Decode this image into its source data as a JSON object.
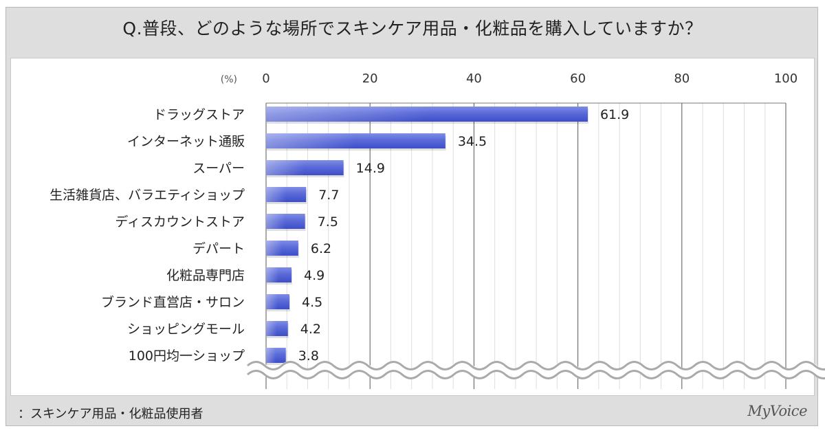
{
  "title": "Q.普段、どのような場所でスキンケア用品・化粧品を購入していますか？",
  "footnote": "：スキンケア用品・化粧品使用者",
  "logo": "MyVoice",
  "colors": {
    "bar": "#5566d8",
    "bar_light": "#aab4f0",
    "grid_major": "#555555",
    "grid_minor": "#dddddd",
    "frame": "#dedede"
  },
  "chart_data": {
    "type": "bar",
    "orientation": "horizontal",
    "title": "Q.普段、どのような場所でスキンケア用品・化粧品を購入していますか？",
    "unit_label": "(%)",
    "xlim": [
      0,
      100
    ],
    "ticks": [
      0,
      20,
      40,
      60,
      80,
      100
    ],
    "grid": true,
    "categories": [
      "ドラッグストア",
      "インターネット通販",
      "スーパー",
      "生活雑貨店、バラエティショップ",
      "ディスカウントストア",
      "デパート",
      "化粧品専門店",
      "ブランド直営店・サロン",
      "ショッピングモール",
      "100円均一ショップ"
    ],
    "values": [
      61.9,
      34.5,
      14.9,
      7.7,
      7.5,
      6.2,
      4.9,
      4.5,
      4.2,
      3.8
    ],
    "value_labels": [
      "61.9",
      "34.5",
      "14.9",
      "7.7",
      "7.5",
      "6.2",
      "4.9",
      "4.5",
      "4.2",
      "3.8"
    ],
    "axis_break": true
  }
}
